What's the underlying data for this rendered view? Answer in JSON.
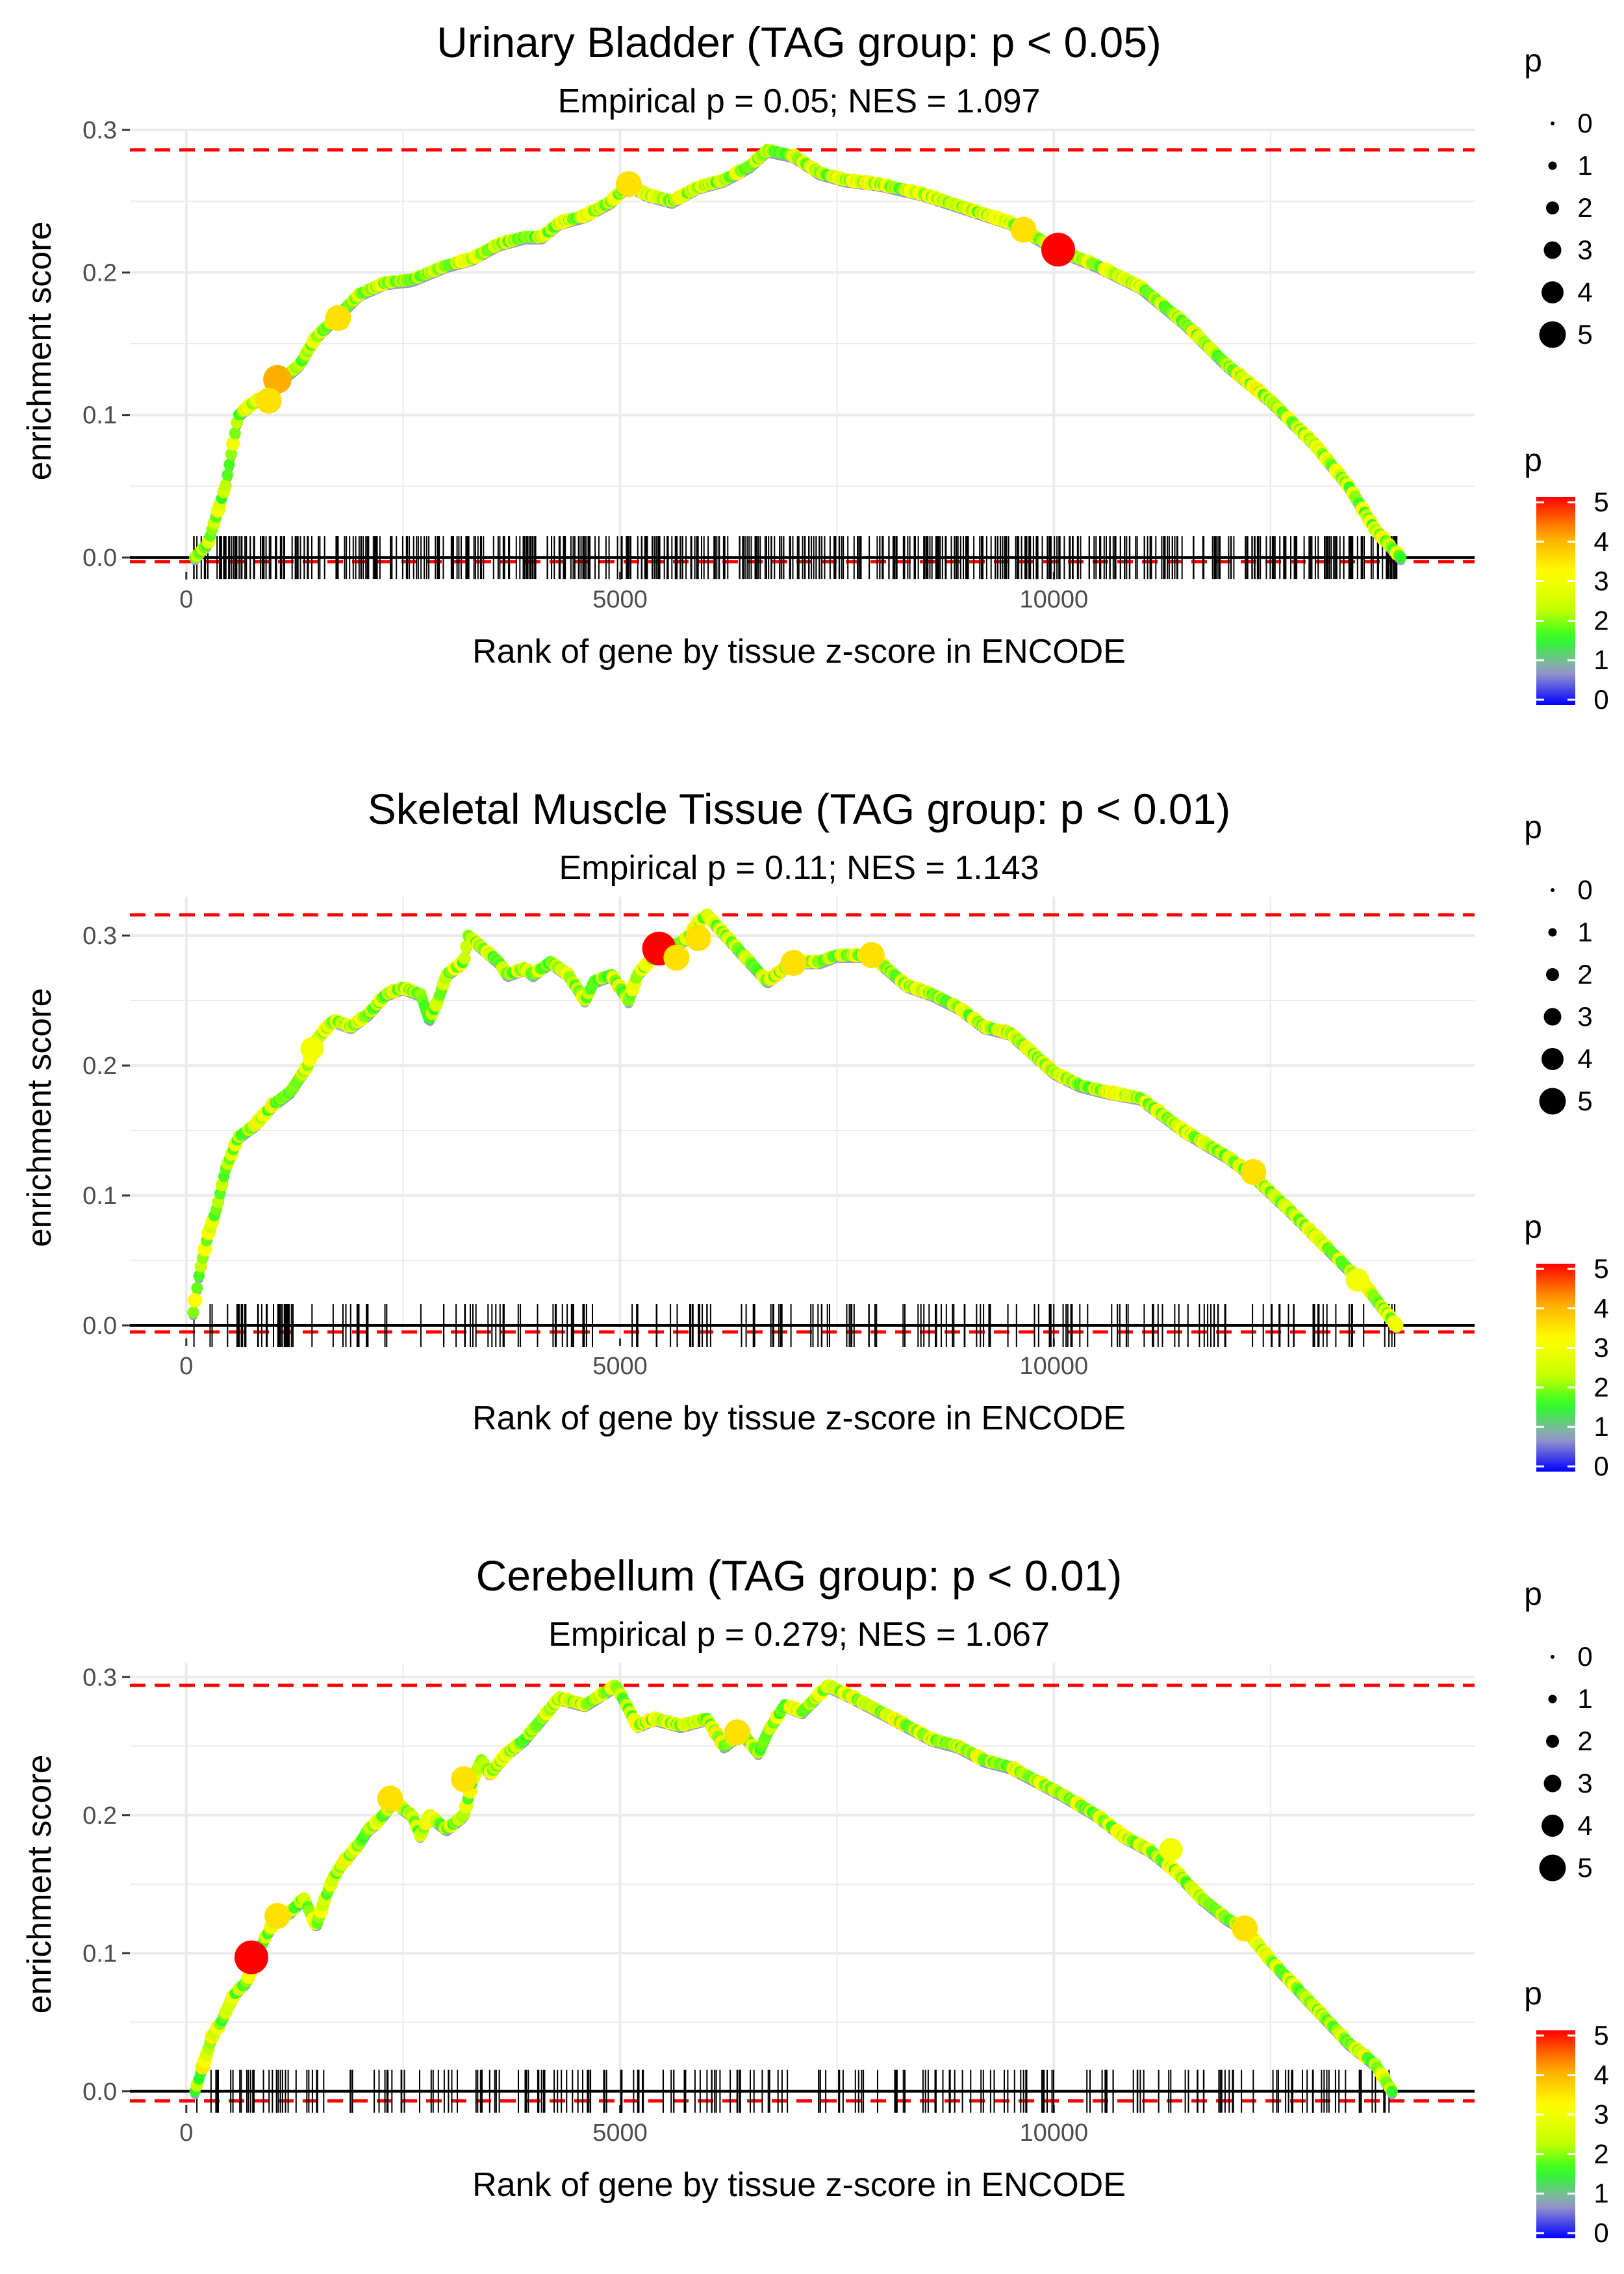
{
  "chart_data": [
    {
      "type": "line",
      "title": "Urinary Bladder (TAG group: p < 0.05)",
      "subtitle": "Empirical p = 0.05; NES = 1.097",
      "xlabel": "Rank of gene by tissue z-score in ENCODE",
      "ylabel": "enrichment score",
      "xlim": [
        -650,
        14850
      ],
      "ylim": [
        -0.01,
        0.3
      ],
      "xticks": [
        0,
        5000,
        10000
      ],
      "xtick_labels": [
        "0",
        "5000",
        "10000"
      ],
      "yticks": [
        0.0,
        0.1,
        0.2,
        0.3
      ],
      "ytick_labels": [
        "0.0",
        "0.1",
        "0.2",
        "0.3"
      ],
      "hlines": {
        "max": 0.286,
        "min": -0.003
      },
      "curve": {
        "x": [
          100,
          250,
          350,
          450,
          600,
          800,
          1000,
          1100,
          1300,
          1500,
          1750,
          2000,
          2300,
          2600,
          2800,
          3000,
          3300,
          3600,
          3900,
          4100,
          4300,
          4600,
          4900,
          5100,
          5300,
          5600,
          5900,
          6200,
          6500,
          6700,
          7000,
          7300,
          7600,
          8000,
          8500,
          9000,
          9500,
          10050,
          10500,
          11000,
          11500,
          12000,
          12500,
          13000,
          13400,
          13700,
          14000
        ],
        "y": [
          0.0,
          0.01,
          0.03,
          0.05,
          0.1,
          0.11,
          0.115,
          0.125,
          0.135,
          0.155,
          0.17,
          0.185,
          0.193,
          0.195,
          0.2,
          0.205,
          0.21,
          0.22,
          0.225,
          0.225,
          0.235,
          0.24,
          0.25,
          0.262,
          0.255,
          0.25,
          0.26,
          0.265,
          0.275,
          0.286,
          0.282,
          0.27,
          0.265,
          0.262,
          0.255,
          0.245,
          0.235,
          0.216,
          0.205,
          0.19,
          0.165,
          0.135,
          0.11,
          0.08,
          0.05,
          0.02,
          0.0
        ]
      },
      "highlights": [
        {
          "x": 1050,
          "y": 0.125,
          "p": 4
        },
        {
          "x": 950,
          "y": 0.11,
          "p": 3.5
        },
        {
          "x": 1750,
          "y": 0.168,
          "p": 3.5
        },
        {
          "x": 5100,
          "y": 0.262,
          "p": 3.5
        },
        {
          "x": 9650,
          "y": 0.23,
          "p": 3.5
        },
        {
          "x": 10050,
          "y": 0.216,
          "p": 5
        }
      ],
      "rug": {
        "range": [
          80,
          14000
        ],
        "count": 520,
        "seed": 11
      },
      "size_legend": {
        "title": "p",
        "labels": [
          "0",
          "1",
          "2",
          "3",
          "4",
          "5"
        ]
      },
      "color_legend": {
        "title": "p",
        "labels": [
          "0",
          "1",
          "2",
          "3",
          "4",
          "5"
        ]
      }
    },
    {
      "type": "line",
      "title": "Skeletal Muscle Tissue (TAG group: p < 0.01)",
      "subtitle": "Empirical p = 0.11; NES = 1.143",
      "xlabel": "Rank of gene by tissue z-score in ENCODE",
      "ylabel": "enrichment score",
      "xlim": [
        -650,
        14850
      ],
      "ylim": [
        -0.01,
        0.33
      ],
      "xticks": [
        0,
        5000,
        10000
      ],
      "xtick_labels": [
        "0",
        "5000",
        "10000"
      ],
      "yticks": [
        0.0,
        0.1,
        0.2,
        0.3
      ],
      "ytick_labels": [
        "0.0",
        "0.1",
        "0.2",
        "0.3"
      ],
      "hlines": {
        "max": 0.316,
        "min": -0.005
      },
      "curve": {
        "x": [
          80,
          150,
          250,
          350,
          450,
          600,
          800,
          1000,
          1200,
          1400,
          1500,
          1700,
          1900,
          2100,
          2300,
          2500,
          2700,
          2800,
          2900,
          3000,
          3200,
          3250,
          3600,
          3700,
          3900,
          4000,
          4200,
          4400,
          4600,
          4700,
          4900,
          5100,
          5200,
          5400,
          5500,
          5700,
          5800,
          5900,
          6000,
          6700,
          6900,
          7100,
          7300,
          7500,
          7900,
          8300,
          8600,
          8900,
          9200,
          9500,
          10000,
          10300,
          10600,
          11000,
          11500,
          12000,
          12300,
          12700,
          13000,
          13300,
          13600,
          13950
        ],
        "y": [
          0.01,
          0.04,
          0.07,
          0.09,
          0.12,
          0.145,
          0.155,
          0.17,
          0.18,
          0.2,
          0.22,
          0.235,
          0.23,
          0.24,
          0.255,
          0.26,
          0.255,
          0.235,
          0.25,
          0.27,
          0.28,
          0.3,
          0.28,
          0.27,
          0.275,
          0.27,
          0.28,
          0.27,
          0.25,
          0.265,
          0.27,
          0.25,
          0.27,
          0.285,
          0.29,
          0.295,
          0.3,
          0.31,
          0.316,
          0.265,
          0.275,
          0.28,
          0.28,
          0.285,
          0.285,
          0.262,
          0.255,
          0.245,
          0.23,
          0.225,
          0.195,
          0.185,
          0.18,
          0.175,
          0.15,
          0.13,
          0.115,
          0.09,
          0.07,
          0.05,
          0.03,
          0.0
        ]
      },
      "highlights": [
        {
          "x": 1450,
          "y": 0.213,
          "p": 3
        },
        {
          "x": 5450,
          "y": 0.29,
          "p": 5
        },
        {
          "x": 5650,
          "y": 0.283,
          "p": 3.5
        },
        {
          "x": 5900,
          "y": 0.298,
          "p": 3.5
        },
        {
          "x": 7000,
          "y": 0.279,
          "p": 3.5
        },
        {
          "x": 7900,
          "y": 0.285,
          "p": 3.5
        },
        {
          "x": 12300,
          "y": 0.118,
          "p": 3.5
        },
        {
          "x": 13500,
          "y": 0.035,
          "p": 3
        }
      ],
      "rug": {
        "range": [
          80,
          13950
        ],
        "count": 210,
        "seed": 23
      },
      "size_legend": {
        "title": "p",
        "labels": [
          "0",
          "1",
          "2",
          "3",
          "4",
          "5"
        ]
      },
      "color_legend": {
        "title": "p",
        "labels": [
          "0",
          "1",
          "2",
          "3",
          "4",
          "5"
        ]
      }
    },
    {
      "type": "line",
      "title": "Cerebellum (TAG group: p < 0.01)",
      "subtitle": "Empirical p = 0.279; NES = 1.067",
      "xlabel": "Rank of gene by tissue z-score in ENCODE",
      "ylabel": "enrichment score",
      "xlim": [
        -650,
        14850
      ],
      "ylim": [
        -0.01,
        0.31
      ],
      "xticks": [
        0,
        5000,
        10000
      ],
      "xtick_labels": [
        "0",
        "5000",
        "10000"
      ],
      "yticks": [
        0.0,
        0.1,
        0.2,
        0.3
      ],
      "ytick_labels": [
        "0.0",
        "0.1",
        "0.2",
        "0.3"
      ],
      "hlines": {
        "max": 0.294,
        "min": -0.007
      },
      "curve": {
        "x": [
          100,
          200,
          300,
          400,
          550,
          700,
          800,
          900,
          1050,
          1200,
          1350,
          1500,
          1600,
          1700,
          1800,
          2000,
          2100,
          2200,
          2400,
          2600,
          2700,
          2800,
          3000,
          3200,
          3300,
          3400,
          3500,
          3700,
          3900,
          4100,
          4300,
          4600,
          4950,
          5200,
          5400,
          5700,
          6000,
          6200,
          6400,
          6600,
          6700,
          6900,
          7100,
          7400,
          7700,
          8000,
          8300,
          8600,
          8900,
          9200,
          9500,
          9800,
          10100,
          10500,
          10800,
          11100,
          11400,
          11700,
          12000,
          12200,
          12500,
          12800,
          13100,
          13400,
          13700,
          13900
        ],
        "y": [
          0.0,
          0.02,
          0.04,
          0.05,
          0.07,
          0.08,
          0.097,
          0.11,
          0.127,
          0.13,
          0.14,
          0.12,
          0.14,
          0.155,
          0.165,
          0.18,
          0.19,
          0.195,
          0.21,
          0.2,
          0.185,
          0.2,
          0.19,
          0.2,
          0.225,
          0.24,
          0.23,
          0.245,
          0.255,
          0.27,
          0.285,
          0.28,
          0.294,
          0.265,
          0.27,
          0.265,
          0.27,
          0.25,
          0.26,
          0.245,
          0.26,
          0.28,
          0.275,
          0.294,
          0.285,
          0.275,
          0.265,
          0.255,
          0.25,
          0.24,
          0.235,
          0.225,
          0.215,
          0.2,
          0.185,
          0.175,
          0.16,
          0.14,
          0.125,
          0.118,
          0.095,
          0.075,
          0.055,
          0.035,
          0.02,
          0.0
        ]
      },
      "highlights": [
        {
          "x": 750,
          "y": 0.097,
          "p": 5
        },
        {
          "x": 1050,
          "y": 0.127,
          "p": 3.5
        },
        {
          "x": 2350,
          "y": 0.212,
          "p": 3.5
        },
        {
          "x": 3200,
          "y": 0.226,
          "p": 3.5
        },
        {
          "x": 6350,
          "y": 0.26,
          "p": 3.5
        },
        {
          "x": 12200,
          "y": 0.118,
          "p": 3.5
        },
        {
          "x": 11350,
          "y": 0.175,
          "p": 3
        }
      ],
      "rug": {
        "range": [
          100,
          13900
        ],
        "count": 230,
        "seed": 37
      },
      "size_legend": {
        "title": "p",
        "labels": [
          "0",
          "1",
          "2",
          "3",
          "4",
          "5"
        ]
      },
      "color_legend": {
        "title": "p",
        "labels": [
          "0",
          "1",
          "2",
          "3",
          "4",
          "5"
        ]
      }
    }
  ],
  "colors": {
    "grid": "#ebebeb",
    "curve_line": "#bebebe",
    "ref_dashed": "#ff0000",
    "baseline": "#000000",
    "rug": "#000000",
    "scale": [
      "#0000ff",
      "#9c9cc8",
      "#26ff26",
      "#c8ff00",
      "#ffff00",
      "#ffa500",
      "#ff0000"
    ]
  }
}
